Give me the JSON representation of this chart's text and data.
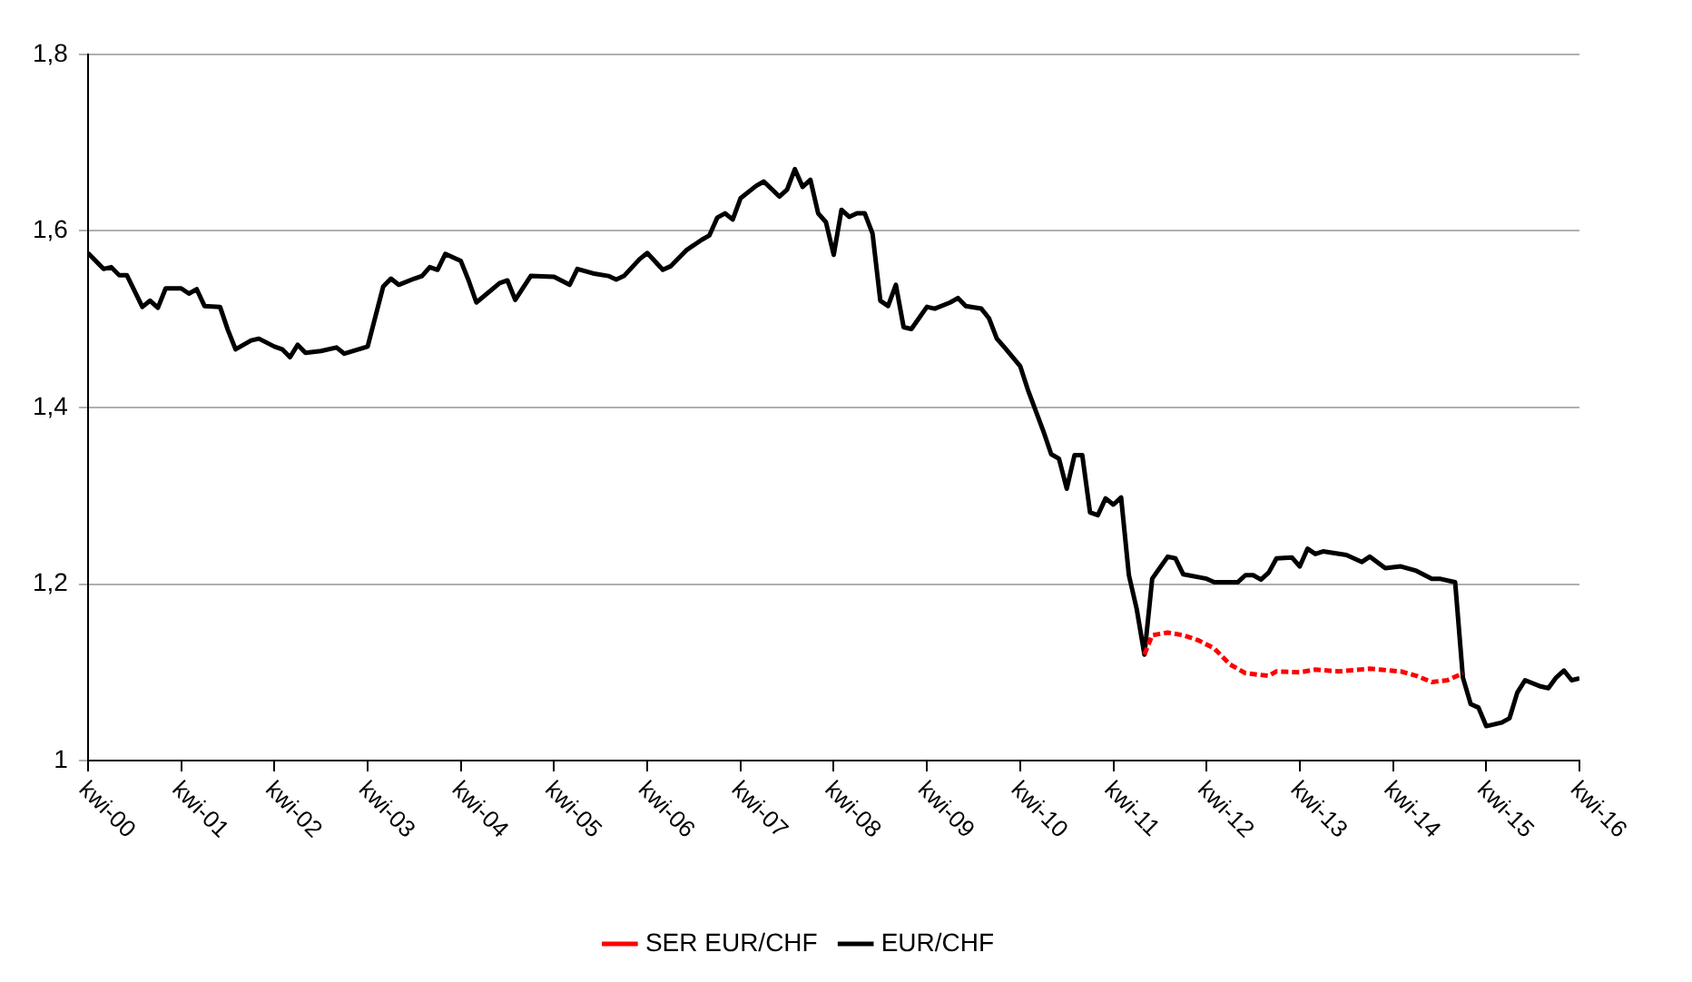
{
  "chart_data": {
    "type": "line",
    "legend": "bottom",
    "grid": "y",
    "marker": "none",
    "xlim": [
      "2000-04",
      "2016-04"
    ],
    "xticks": [
      {
        "value": "2000-04",
        "label": "kwi-00"
      },
      {
        "value": "2001-04",
        "label": "kwi-01"
      },
      {
        "value": "2002-04",
        "label": "kwi-02"
      },
      {
        "value": "2003-04",
        "label": "kwi-03"
      },
      {
        "value": "2004-04",
        "label": "kwi-04"
      },
      {
        "value": "2005-04",
        "label": "kwi-05"
      },
      {
        "value": "2006-04",
        "label": "kwi-06"
      },
      {
        "value": "2007-04",
        "label": "kwi-07"
      },
      {
        "value": "2008-04",
        "label": "kwi-08"
      },
      {
        "value": "2009-04",
        "label": "kwi-09"
      },
      {
        "value": "2010-04",
        "label": "kwi-10"
      },
      {
        "value": "2011-04",
        "label": "kwi-11"
      },
      {
        "value": "2012-04",
        "label": "kwi-12"
      },
      {
        "value": "2013-04",
        "label": "kwi-13"
      },
      {
        "value": "2014-04",
        "label": "kwi-14"
      },
      {
        "value": "2015-04",
        "label": "kwi-15"
      },
      {
        "value": "2016-04",
        "label": "kwi-16"
      }
    ],
    "ylim": [
      1,
      1.8
    ],
    "yticks": [
      1,
      {
        "value": 1.2,
        "label": "1,2"
      },
      {
        "value": 1.4,
        "label": "1,4"
      },
      {
        "value": 1.6,
        "label": "1,6"
      },
      {
        "value": 1.8,
        "label": "1,8"
      }
    ],
    "series": [
      {
        "name": "SER EUR/CHF",
        "color": "#ff0000",
        "line_style": "dashed",
        "x": [
          "2011-08",
          "2011-09",
          "2011-11",
          "2012-01",
          "2012-03",
          "2012-05",
          "2012-07",
          "2012-09",
          "2012-12",
          "2013-01",
          "2013-04",
          "2013-06",
          "2013-09",
          "2014-01",
          "2014-05",
          "2014-07",
          "2014-09",
          "2014-11",
          "2015-01"
        ],
        "values": [
          1.12,
          1.142,
          1.145,
          1.142,
          1.136,
          1.127,
          1.109,
          1.099,
          1.096,
          1.101,
          1.1,
          1.103,
          1.101,
          1.104,
          1.101,
          1.096,
          1.089,
          1.091,
          1.099
        ]
      },
      {
        "name": "EUR/CHF",
        "color": "#000000",
        "line_style": "solid",
        "x": [
          "2000-04",
          "2000-06",
          "2000-07",
          "2000-08",
          "2000-09",
          "2000-11",
          "2000-12",
          "2001-01",
          "2001-02",
          "2001-04",
          "2001-05",
          "2001-06",
          "2001-07",
          "2001-09",
          "2001-10",
          "2001-11",
          "2002-01",
          "2002-02",
          "2002-04",
          "2002-05",
          "2002-06",
          "2002-07",
          "2002-08",
          "2002-10",
          "2002-12",
          "2003-01",
          "2003-04",
          "2003-06",
          "2003-07",
          "2003-08",
          "2003-10",
          "2003-11",
          "2003-12",
          "2004-01",
          "2004-02",
          "2004-04",
          "2004-05",
          "2004-06",
          "2004-09",
          "2004-10",
          "2004-11",
          "2005-01",
          "2005-04",
          "2005-06",
          "2005-07",
          "2005-09",
          "2005-11",
          "2005-12",
          "2006-01",
          "2006-03",
          "2006-04",
          "2006-06",
          "2006-07",
          "2006-09",
          "2006-11",
          "2006-12",
          "2007-01",
          "2007-02",
          "2007-03",
          "2007-04",
          "2007-06",
          "2007-07",
          "2007-09",
          "2007-10",
          "2007-11",
          "2007-12",
          "2008-01",
          "2008-02",
          "2008-03",
          "2008-04",
          "2008-05",
          "2008-06",
          "2008-07",
          "2008-08",
          "2008-09",
          "2008-10",
          "2008-11",
          "2008-12",
          "2009-01",
          "2009-02",
          "2009-04",
          "2009-05",
          "2009-07",
          "2009-08",
          "2009-09",
          "2009-11",
          "2009-12",
          "2010-01",
          "2010-02",
          "2010-04",
          "2010-05",
          "2010-07",
          "2010-08",
          "2010-09",
          "2010-10",
          "2010-11",
          "2010-12",
          "2011-01",
          "2011-02",
          "2011-03",
          "2011-04",
          "2011-05",
          "2011-06",
          "2011-07",
          "2011-08",
          "2011-09",
          "2011-11",
          "2011-12",
          "2012-01",
          "2012-04",
          "2012-05",
          "2012-08",
          "2012-09",
          "2012-10",
          "2012-11",
          "2012-12",
          "2013-01",
          "2013-03",
          "2013-04",
          "2013-05",
          "2013-06",
          "2013-07",
          "2013-10",
          "2013-12",
          "2014-01",
          "2014-03",
          "2014-05",
          "2014-07",
          "2014-09",
          "2014-10",
          "2014-12",
          "2015-01",
          "2015-02",
          "2015-03",
          "2015-04",
          "2015-06",
          "2015-07",
          "2015-08",
          "2015-09",
          "2015-11",
          "2015-12",
          "2016-01",
          "2016-02",
          "2016-03",
          "2016-04"
        ],
        "values": [
          1.575,
          1.557,
          1.559,
          1.55,
          1.55,
          1.514,
          1.521,
          1.513,
          1.535,
          1.535,
          1.529,
          1.534,
          1.515,
          1.514,
          1.488,
          1.466,
          1.476,
          1.478,
          1.469,
          1.466,
          1.457,
          1.471,
          1.462,
          1.464,
          1.468,
          1.461,
          1.469,
          1.537,
          1.546,
          1.539,
          1.546,
          1.549,
          1.559,
          1.556,
          1.574,
          1.566,
          1.544,
          1.519,
          1.541,
          1.544,
          1.522,
          1.549,
          1.548,
          1.539,
          1.557,
          1.552,
          1.549,
          1.545,
          1.549,
          1.568,
          1.575,
          1.556,
          1.56,
          1.578,
          1.59,
          1.595,
          1.615,
          1.62,
          1.613,
          1.637,
          1.651,
          1.656,
          1.639,
          1.647,
          1.67,
          1.65,
          1.658,
          1.62,
          1.61,
          1.573,
          1.624,
          1.616,
          1.62,
          1.62,
          1.597,
          1.521,
          1.515,
          1.539,
          1.491,
          1.489,
          1.514,
          1.512,
          1.519,
          1.524,
          1.515,
          1.512,
          1.501,
          1.478,
          1.468,
          1.447,
          1.42,
          1.373,
          1.347,
          1.342,
          1.308,
          1.346,
          1.346,
          1.281,
          1.278,
          1.297,
          1.29,
          1.298,
          1.21,
          1.172,
          1.12,
          1.206,
          1.231,
          1.229,
          1.211,
          1.206,
          1.202,
          1.202,
          1.21,
          1.21,
          1.205,
          1.213,
          1.229,
          1.23,
          1.22,
          1.24,
          1.234,
          1.237,
          1.233,
          1.225,
          1.231,
          1.218,
          1.22,
          1.215,
          1.206,
          1.206,
          1.202,
          1.094,
          1.064,
          1.06,
          1.039,
          1.043,
          1.048,
          1.077,
          1.091,
          1.084,
          1.082,
          1.094,
          1.102,
          1.091,
          1.093
        ]
      }
    ]
  }
}
